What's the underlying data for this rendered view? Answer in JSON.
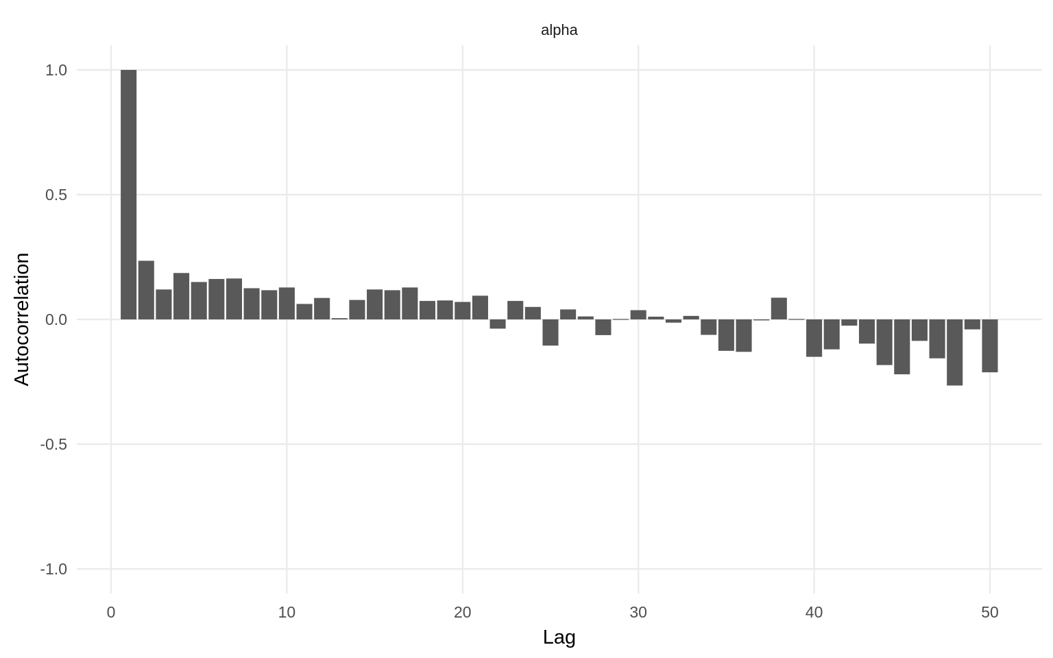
{
  "chart_data": {
    "type": "bar",
    "title": "alpha",
    "xlabel": "Lag",
    "ylabel": "Autocorrelation",
    "xlim": [
      0,
      52.6
    ],
    "ylim": [
      -1.1,
      1.1
    ],
    "x_ticks": [
      0,
      10,
      20,
      30,
      40,
      50
    ],
    "y_ticks": [
      1.0,
      0.5,
      0.0,
      -0.5,
      -1.0
    ],
    "x_tick_labels": [
      "0",
      "10",
      "20",
      "30",
      "40",
      "50"
    ],
    "y_tick_labels": [
      "1.0",
      "0.5",
      "0.0",
      "-0.5",
      "-1.0"
    ],
    "grid": true,
    "bar_color": "#595959",
    "lags": [
      1,
      2,
      3,
      4,
      5,
      6,
      7,
      8,
      9,
      10,
      11,
      12,
      13,
      14,
      15,
      16,
      17,
      18,
      19,
      20,
      21,
      22,
      23,
      24,
      25,
      26,
      27,
      28,
      29,
      30,
      31,
      32,
      33,
      34,
      35,
      36,
      37,
      38,
      39,
      40,
      41,
      42,
      43,
      44,
      45,
      46,
      47,
      48,
      49,
      50
    ],
    "values": [
      1.0,
      0.235,
      0.12,
      0.186,
      0.15,
      0.162,
      0.164,
      0.125,
      0.117,
      0.128,
      0.062,
      0.086,
      0.005,
      0.078,
      0.12,
      0.117,
      0.128,
      0.074,
      0.076,
      0.07,
      0.095,
      -0.037,
      0.074,
      0.05,
      -0.105,
      0.04,
      0.012,
      -0.063,
      -0.003,
      0.037,
      0.011,
      -0.013,
      0.014,
      -0.062,
      -0.126,
      -0.13,
      -0.004,
      0.087,
      0.0,
      -0.15,
      -0.12,
      -0.025,
      -0.097,
      -0.183,
      -0.22,
      -0.086,
      -0.156,
      -0.265,
      -0.04,
      -0.212
    ]
  }
}
